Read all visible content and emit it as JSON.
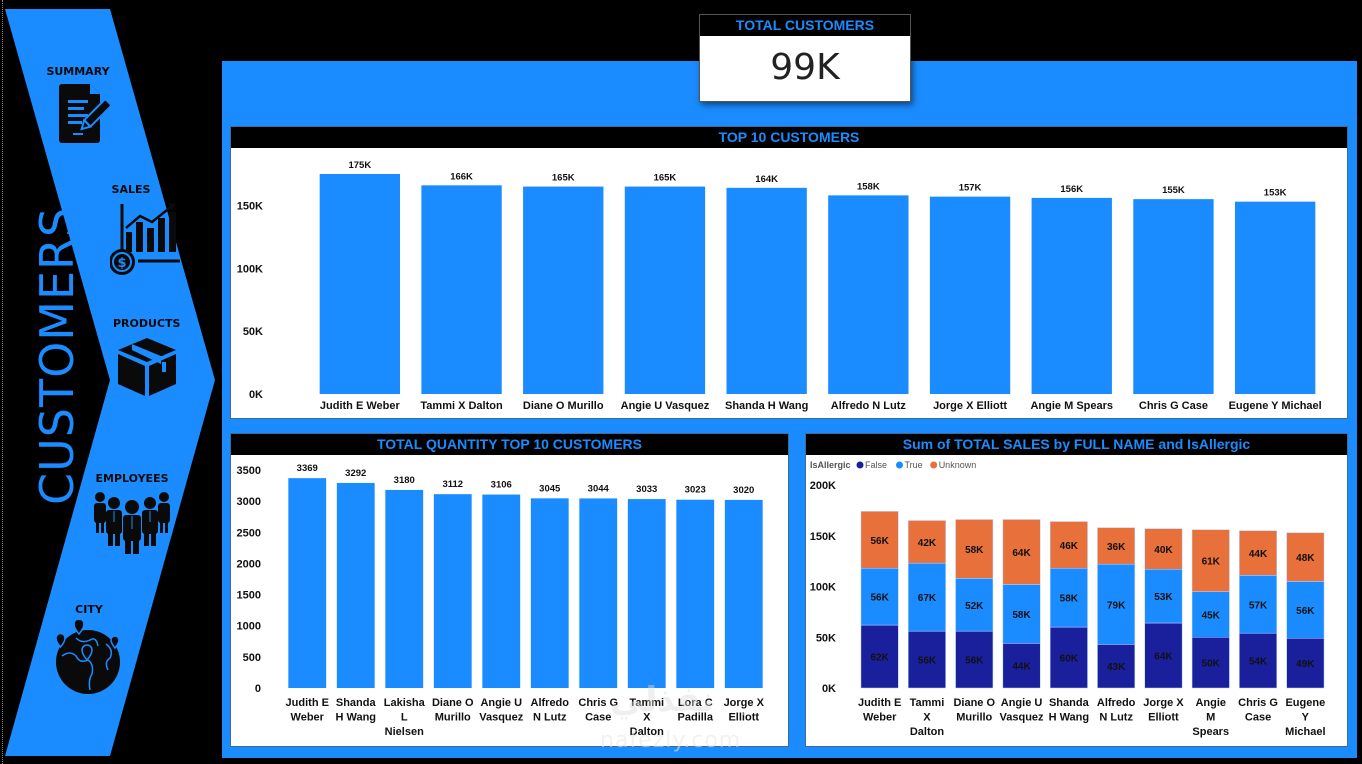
{
  "page": {
    "title": "CUSTOMERS",
    "colors": {
      "accent": "#1a8cff",
      "background": "#000000",
      "false_series": "#1a1f9c",
      "true_series": "#1a8cff",
      "unknown_series": "#e8703a"
    }
  },
  "sidebar": {
    "items": [
      {
        "label": "SUMMARY",
        "icon": "document-edit-icon"
      },
      {
        "label": "SALES",
        "icon": "sales-chart-icon"
      },
      {
        "label": "PRODUCTS",
        "icon": "box-icon"
      },
      {
        "label": "EMPLOYEES",
        "icon": "people-group-icon"
      },
      {
        "label": "CITY",
        "icon": "globe-pins-icon"
      }
    ]
  },
  "kpi": {
    "title": "TOTAL CUSTOMERS",
    "value": "99K"
  },
  "watermark": {
    "text": "nafezly.com",
    "arabic": "نفذلي"
  },
  "chart_data": [
    {
      "id": "top10",
      "type": "bar",
      "title": "TOP 10 CUSTOMERS",
      "categories": [
        "Judith E Weber",
        "Tammi X Dalton",
        "Diane O Murillo",
        "Angie U Vasquez",
        "Shanda H Wang",
        "Alfredo N Lutz",
        "Jorge X Elliott",
        "Angie M Spears",
        "Chris G Case",
        "Eugene Y Michael"
      ],
      "values": [
        175000,
        166000,
        165000,
        165000,
        164000,
        158000,
        157000,
        156000,
        155000,
        153000
      ],
      "labels": [
        "175K",
        "166K",
        "165K",
        "165K",
        "164K",
        "158K",
        "157K",
        "156K",
        "155K",
        "153K"
      ],
      "yticks": [
        "0K",
        "50K",
        "100K",
        "150K"
      ],
      "ytick_values": [
        0,
        50000,
        100000,
        150000
      ],
      "ylim": [
        0,
        175000
      ],
      "xlabel": "",
      "ylabel": "",
      "grid": false
    },
    {
      "id": "quantity",
      "type": "bar",
      "title": "TOTAL QUANTITY TOP 10 CUSTOMERS",
      "categories": [
        "Judith E Weber",
        "Shanda H Wang",
        "Lakisha L Nielsen",
        "Diane O Murillo",
        "Angie U Vasquez",
        "Alfredo N Lutz",
        "Chris G Case",
        "Tammi X Dalton",
        "Lora C Padilla",
        "Jorge X Elliott"
      ],
      "category_lines": [
        [
          "Judith E",
          "Weber"
        ],
        [
          "Shanda",
          "H Wang"
        ],
        [
          "Lakisha",
          "L",
          "Nielsen"
        ],
        [
          "Diane O",
          "Murillo"
        ],
        [
          "Angie U",
          "Vasquez"
        ],
        [
          "Alfredo",
          "N Lutz"
        ],
        [
          "Chris G",
          "Case"
        ],
        [
          "Tammi",
          "X",
          "Dalton"
        ],
        [
          "Lora C",
          "Padilla"
        ],
        [
          "Jorge X",
          "Elliott"
        ]
      ],
      "values": [
        3369,
        3292,
        3180,
        3112,
        3106,
        3045,
        3044,
        3033,
        3023,
        3020
      ],
      "labels": [
        "3369",
        "3292",
        "3180",
        "3112",
        "3106",
        "3045",
        "3044",
        "3033",
        "3023",
        "3020"
      ],
      "yticks": [
        "0",
        "500",
        "1000",
        "1500",
        "2000",
        "2500",
        "3000",
        "3500"
      ],
      "ytick_values": [
        0,
        500,
        1000,
        1500,
        2000,
        2500,
        3000,
        3500
      ],
      "ylim": [
        0,
        3500
      ],
      "xlabel": "",
      "ylabel": "",
      "grid": false
    },
    {
      "id": "allergic",
      "type": "bar",
      "stacked": true,
      "title": "Sum of TOTAL SALES by FULL NAME and IsAllergic",
      "legend_title": "IsAllergic",
      "legend_position": "top-left",
      "categories": [
        "Judith E Weber",
        "Tammi X Dalton",
        "Diane O Murillo",
        "Angie U Vasquez",
        "Shanda H Wang",
        "Alfredo N Lutz",
        "Jorge X Elliott",
        "Angie M Spears",
        "Chris G Case",
        "Eugene Y Michael"
      ],
      "category_lines": [
        [
          "Judith E",
          "Weber"
        ],
        [
          "Tammi",
          "X",
          "Dalton"
        ],
        [
          "Diane O",
          "Murillo"
        ],
        [
          "Angie U",
          "Vasquez"
        ],
        [
          "Shanda",
          "H Wang"
        ],
        [
          "Alfredo",
          "N Lutz"
        ],
        [
          "Jorge X",
          "Elliott"
        ],
        [
          "Angie",
          "M",
          "Spears"
        ],
        [
          "Chris G",
          "Case"
        ],
        [
          "Eugene",
          "Y",
          "Michael"
        ]
      ],
      "series": [
        {
          "name": "False",
          "color": "#1a1f9c",
          "values": [
            62,
            56,
            56,
            44,
            60,
            43,
            64,
            50,
            54,
            49
          ],
          "labels": [
            "62K",
            "56K",
            "56K",
            "44K",
            "60K",
            "43K",
            "64K",
            "50K",
            "54K",
            "49K"
          ]
        },
        {
          "name": "True",
          "color": "#1a8cff",
          "values": [
            56,
            67,
            52,
            58,
            58,
            79,
            53,
            45,
            57,
            56
          ],
          "labels": [
            "56K",
            "67K",
            "52K",
            "58K",
            "58K",
            "79K",
            "53K",
            "45K",
            "57K",
            "56K"
          ]
        },
        {
          "name": "Unknown",
          "color": "#e8703a",
          "values": [
            56,
            42,
            58,
            64,
            46,
            36,
            40,
            61,
            44,
            48
          ],
          "labels": [
            "56K",
            "42K",
            "58K",
            "64K",
            "46K",
            "36K",
            "40K",
            "61K",
            "44K",
            "48K"
          ]
        }
      ],
      "value_unit": "K",
      "yticks": [
        "0K",
        "50K",
        "100K",
        "150K",
        "200K"
      ],
      "ytick_values": [
        0,
        50,
        100,
        150,
        200
      ],
      "ylim": [
        0,
        200
      ],
      "xlabel": "",
      "ylabel": "",
      "grid": false
    }
  ]
}
